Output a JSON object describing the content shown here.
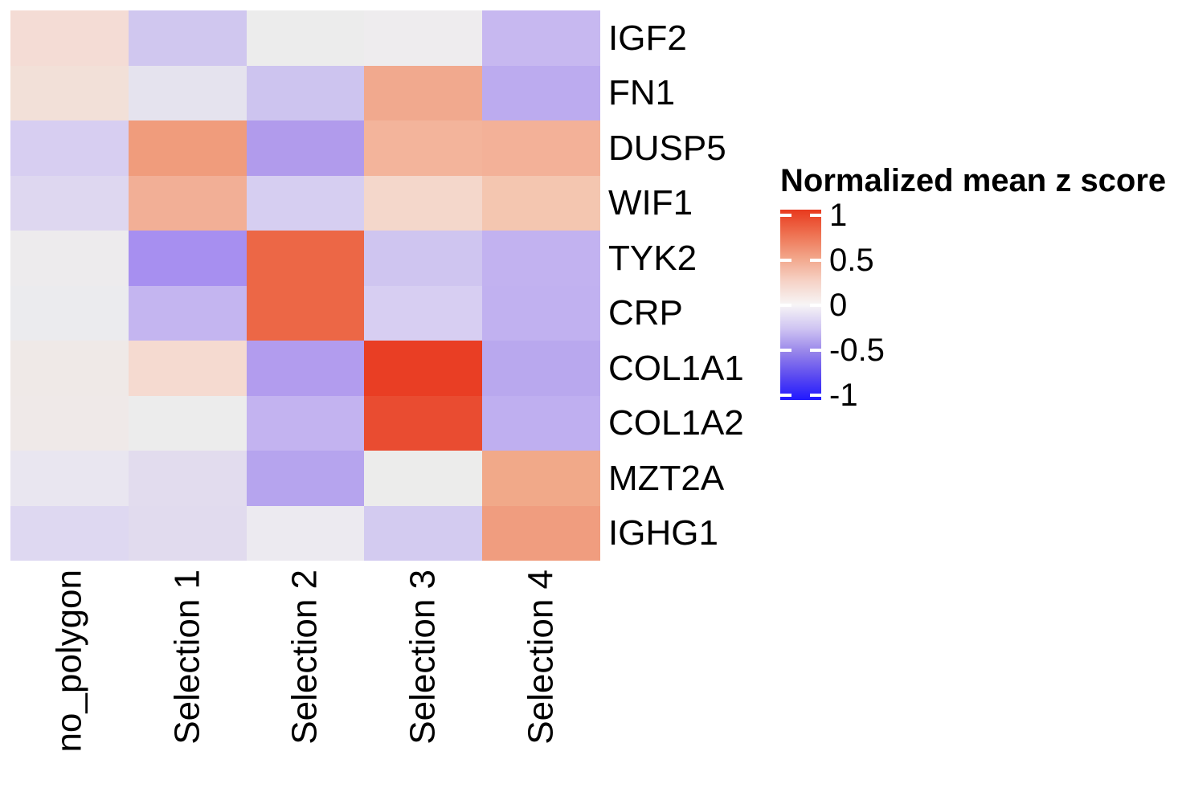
{
  "chart_data": {
    "type": "heatmap",
    "title": "",
    "x_categories": [
      "no_polygon",
      "Selection 1",
      "Selection 2",
      "Selection 3",
      "Selection 4"
    ],
    "y_categories": [
      "IGF2",
      "FN1",
      "DUSP5",
      "WIF1",
      "TYK2",
      "CRP",
      "COL1A1",
      "COL1A2",
      "MZT2A",
      "IGHG1"
    ],
    "values": [
      [
        0.15,
        -0.28,
        -0.02,
        -0.01,
        -0.35
      ],
      [
        0.12,
        -0.09,
        -0.3,
        0.45,
        -0.44
      ],
      [
        -0.25,
        0.5,
        -0.55,
        0.4,
        0.41
      ],
      [
        -0.2,
        0.4,
        -0.24,
        0.17,
        0.3
      ],
      [
        -0.02,
        -0.62,
        0.76,
        -0.27,
        -0.4
      ],
      [
        -0.03,
        -0.37,
        0.76,
        -0.23,
        -0.41
      ],
      [
        0.04,
        0.16,
        -0.54,
        0.98,
        -0.46
      ],
      [
        0.04,
        -0.02,
        -0.38,
        0.9,
        -0.42
      ],
      [
        -0.07,
        -0.13,
        -0.47,
        -0.02,
        0.45
      ],
      [
        -0.17,
        -0.14,
        -0.05,
        -0.26,
        0.5
      ]
    ],
    "cell_colors": [
      [
        "#f4dcd5",
        "#d0c7ef",
        "#ececec",
        "#eeecee",
        "#c7b8f0"
      ],
      [
        "#f2e0d8",
        "#e5e3ee",
        "#cdc4ef",
        "#f1a98e",
        "#bcabef"
      ],
      [
        "#d7cef1",
        "#f09c7c",
        "#b19bec",
        "#f3b49b",
        "#f3b198"
      ],
      [
        "#ded7f0",
        "#f2af96",
        "#d6cef1",
        "#f4d7cb",
        "#f4c6b0"
      ],
      [
        "#edebed",
        "#a78ff0",
        "#ec6746",
        "#cfc5f0",
        "#c2b2f0"
      ],
      [
        "#ebebee",
        "#c4b5f0",
        "#ec6746",
        "#d7cef2",
        "#c1b1f0"
      ],
      [
        "#efe9e7",
        "#f5dad0",
        "#b29cee",
        "#e93e24",
        "#b9a8ee"
      ],
      [
        "#efe9e8",
        "#ececec",
        "#c3b3f0",
        "#e94c31",
        "#bfaff0"
      ],
      [
        "#e9e6f0",
        "#e2dcee",
        "#b6a4ee",
        "#ececeb",
        "#f1a989"
      ],
      [
        "#ded8f1",
        "#e1dbee",
        "#eceaf0",
        "#d3cbf0",
        "#f09d7f"
      ]
    ],
    "legend": {
      "title": "Normalized mean z score",
      "position": "right",
      "range": [
        -1,
        1
      ],
      "ticks": [
        1,
        0.5,
        0,
        -0.5,
        -1
      ],
      "tick_labels": [
        "1",
        "0.5",
        "0",
        "-0.5",
        "-1"
      ],
      "color_high": "#e8391d",
      "color_mid": "#f7f5f6",
      "color_low": "#1d1dff",
      "gradient_stops": [
        "#e8391d",
        "#ee7050",
        "#f2a488",
        "#f6d2c6",
        "#f7f5f6",
        "#cfc4f2",
        "#9683ea",
        "#5b4af0",
        "#2019ff"
      ]
    },
    "axes": {
      "x_label": "",
      "y_label": "",
      "grid": false,
      "x_tick_rotation_deg": 90
    }
  }
}
